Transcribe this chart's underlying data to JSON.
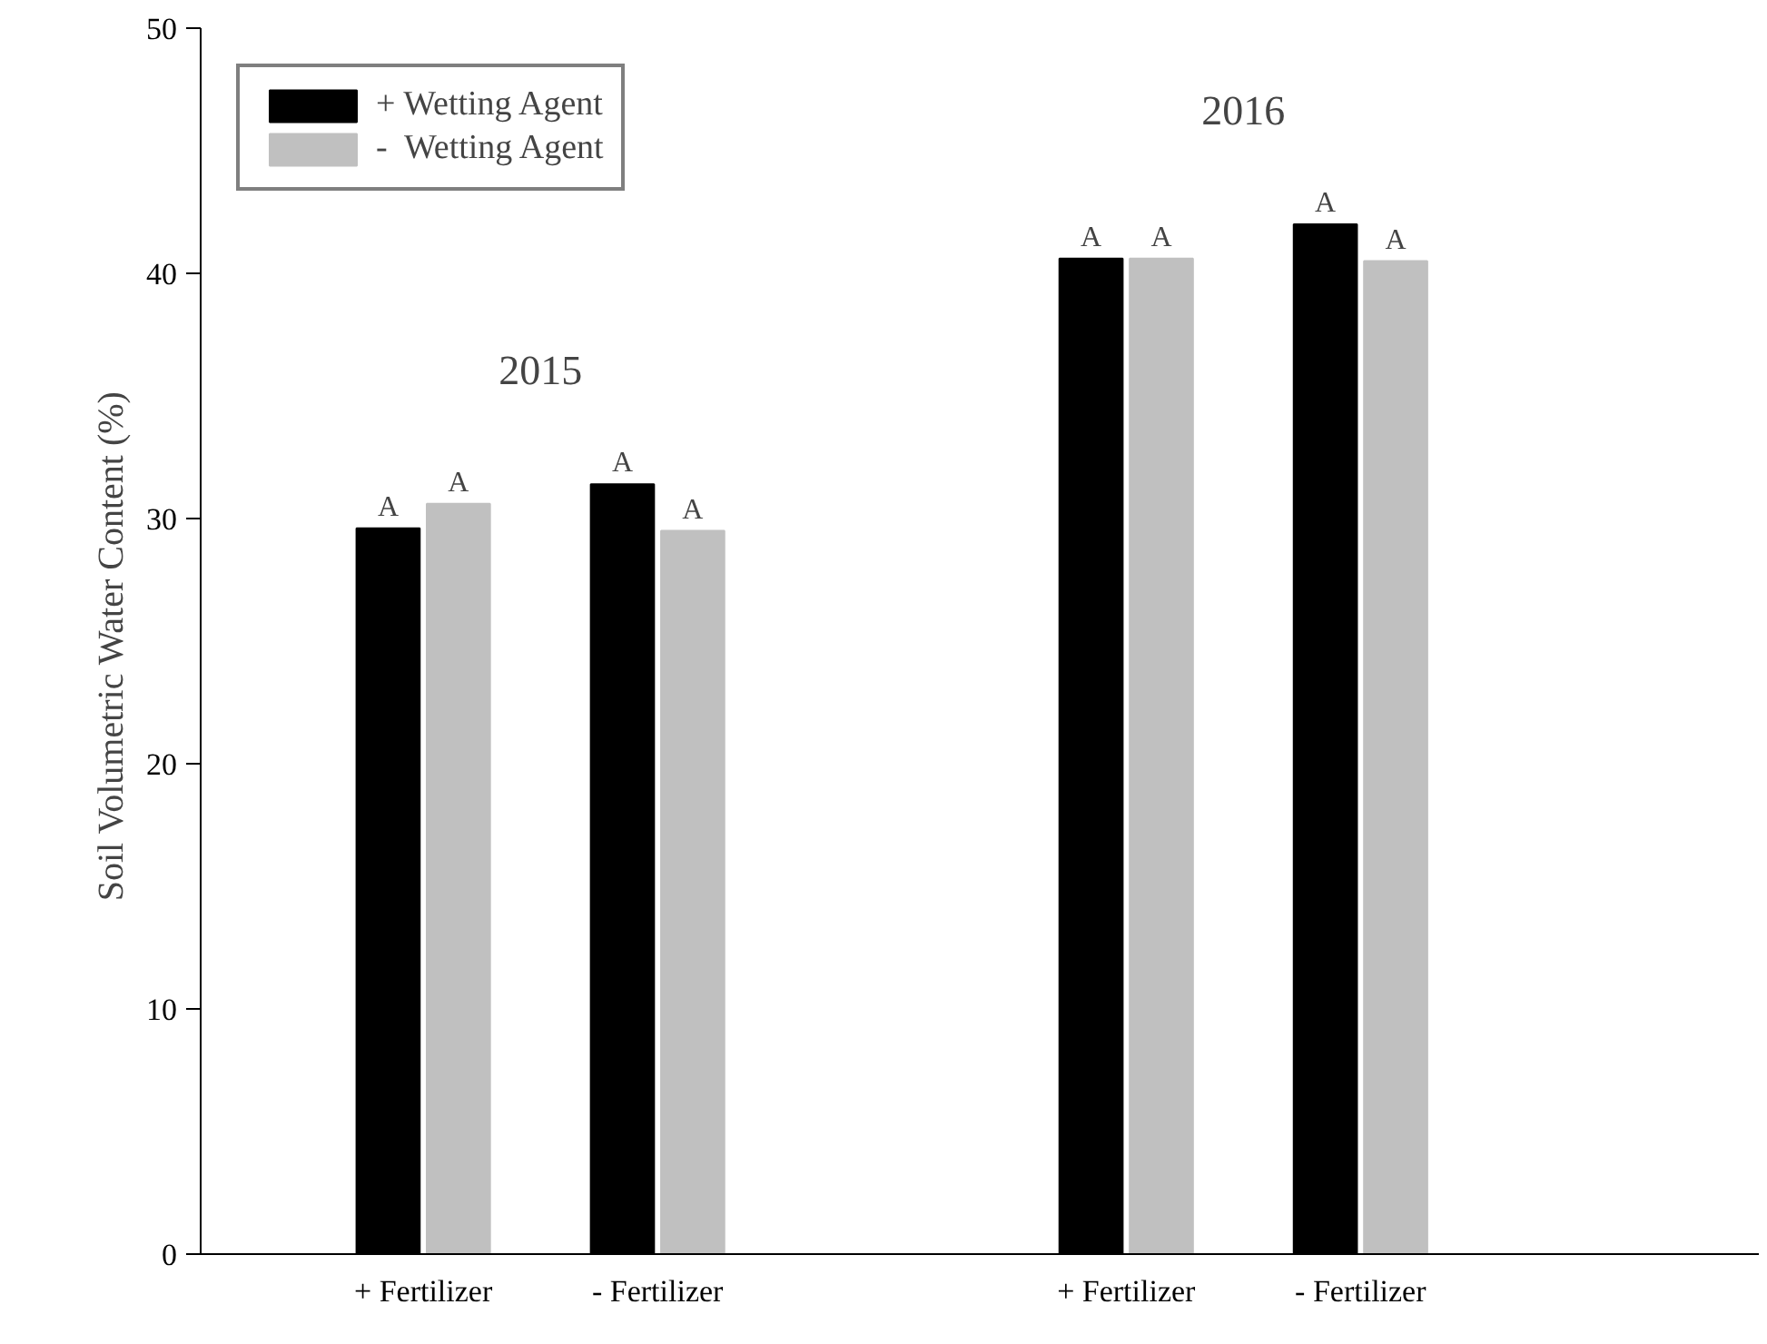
{
  "chart_data": {
    "type": "bar",
    "ylabel": "Soil  Volumetric Water Content (%)",
    "categories": [
      "+ Fertilizer",
      "- Fertilizer",
      null,
      "+ Fertilizer",
      "- Fertilizer"
    ],
    "series": [
      {
        "name": "+ Wetting Agent",
        "color": "#000000",
        "values": [
          29.6,
          31.4,
          null,
          40.6,
          42.0
        ],
        "value_labels": [
          "A",
          "A",
          null,
          "A",
          "A"
        ]
      },
      {
        "name": "-  Wetting Agent",
        "color": "#c0c0c0",
        "values": [
          30.6,
          29.5,
          null,
          40.6,
          40.5
        ],
        "value_labels": [
          "A",
          "A",
          null,
          "A",
          "A"
        ]
      }
    ],
    "annotations": [
      "2015",
      "2016"
    ],
    "ylim": [
      0,
      50
    ],
    "yticks": [
      0,
      10,
      20,
      30,
      40,
      50
    ],
    "grid": false,
    "legend": "top left"
  }
}
